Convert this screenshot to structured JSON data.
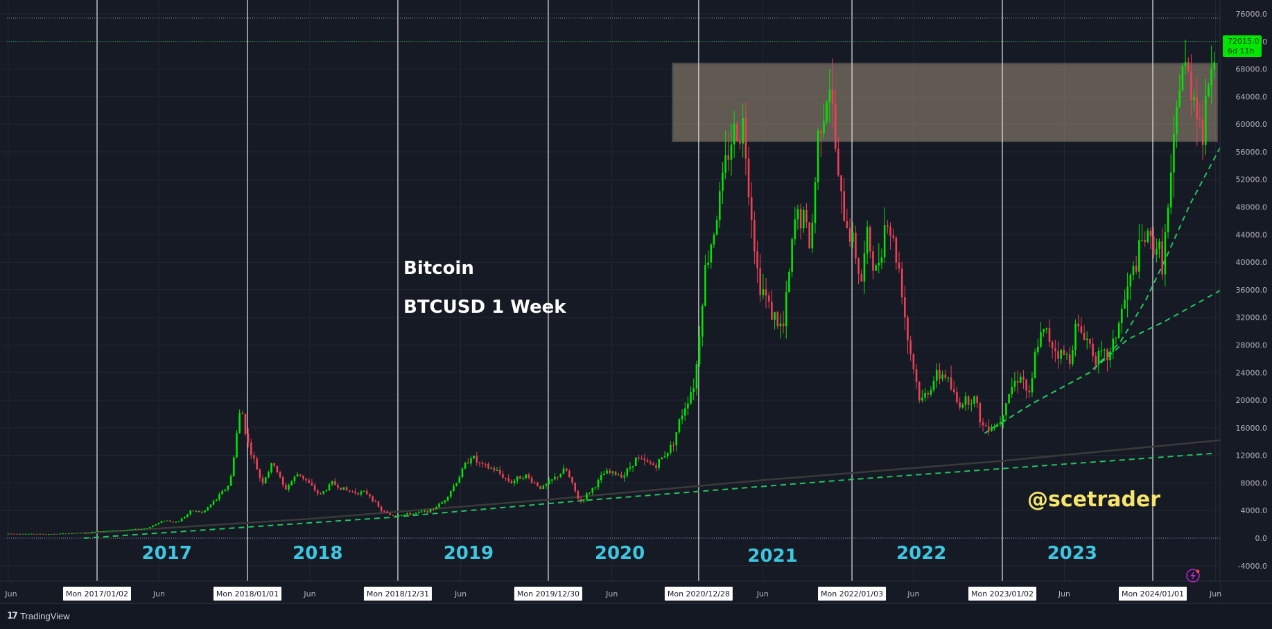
{
  "chart_data": {
    "type": "candlestick",
    "symbol_title": "Bitcoin",
    "symbol_subtitle": "BTCUSD 1 Week",
    "watermark": "@scetrader",
    "price_axis": {
      "ylim": [
        -6000,
        78000
      ],
      "ticks": [
        "76000.0",
        "72000.0",
        "68000.0",
        "64000.0",
        "60000.0",
        "56000.0",
        "52000.0",
        "48000.0",
        "44000.0",
        "40000.0",
        "36000.0",
        "32000.0",
        "28000.0",
        "24000.0",
        "20000.0",
        "16000.0",
        "12000.0",
        "8000.0",
        "4000.0",
        "0.0",
        "-4000.0"
      ]
    },
    "last_price": {
      "value": "72015.0",
      "countdown": "6d 11h",
      "color": "#00e600"
    },
    "time_axis": {
      "labels": [
        {
          "date": "2016-06-01",
          "text": "Jun",
          "boxed": false
        },
        {
          "date": "2017-01-02",
          "text": "Mon 2017/01/02",
          "boxed": true
        },
        {
          "date": "2017-06-01",
          "text": "Jun",
          "boxed": false
        },
        {
          "date": "2018-01-01",
          "text": "Mon 2018/01/01",
          "boxed": true
        },
        {
          "date": "2018-06-01",
          "text": "Jun",
          "boxed": false
        },
        {
          "date": "2018-12-31",
          "text": "Mon 2018/12/31",
          "boxed": true
        },
        {
          "date": "2019-06-01",
          "text": "Jun",
          "boxed": false
        },
        {
          "date": "2019-12-30",
          "text": "Mon 2019/12/30",
          "boxed": true
        },
        {
          "date": "2020-06-01",
          "text": "Jun",
          "boxed": false
        },
        {
          "date": "2020-12-28",
          "text": "Mon 2020/12/28",
          "boxed": true
        },
        {
          "date": "2021-06-01",
          "text": "Jun",
          "boxed": false
        },
        {
          "date": "2022-01-03",
          "text": "Mon 2022/01/03",
          "boxed": true
        },
        {
          "date": "2022-06-01",
          "text": "Jun",
          "boxed": false
        },
        {
          "date": "2023-01-02",
          "text": "Mon 2023/01/02",
          "boxed": true
        },
        {
          "date": "2023-06-01",
          "text": "Jun",
          "boxed": false
        },
        {
          "date": "2024-01-01",
          "text": "Mon 2024/01/01",
          "boxed": true
        },
        {
          "date": "2024-06-01",
          "text": "Jun",
          "boxed": false
        }
      ]
    },
    "year_separators": [
      "2017-01-02",
      "2018-01-01",
      "2018-12-31",
      "2019-12-30",
      "2020-12-28",
      "2022-01-03",
      "2023-01-02",
      "2024-01-01"
    ],
    "year_labels": [
      {
        "text": "2017",
        "date": "2017-06-20",
        "y": -2000
      },
      {
        "text": "2018",
        "date": "2018-06-20",
        "y": -2000
      },
      {
        "text": "2019",
        "date": "2019-06-20",
        "y": -2000
      },
      {
        "text": "2020",
        "date": "2020-06-20",
        "y": -2000
      },
      {
        "text": "2021",
        "date": "2021-06-25",
        "y": -2400
      },
      {
        "text": "2022",
        "date": "2022-06-20",
        "y": -2000
      },
      {
        "text": "2023",
        "date": "2023-06-20",
        "y": -2000
      }
    ],
    "resistance_zone": {
      "date_start": "2020-10-26",
      "date_end": "2024-06-05",
      "price_low": 57500,
      "price_high": 68800
    },
    "horizontal_level": 72015,
    "trendlines": [
      {
        "name": "long-term support",
        "style": "dashed",
        "color": "#22c55e",
        "points": [
          [
            "2016-12-01",
            0
          ],
          [
            "2018-12-10",
            3000
          ],
          [
            "2020-04-01",
            5500
          ],
          [
            "2022-01-01",
            8500
          ],
          [
            "2024-06-01",
            12300
          ]
        ]
      },
      {
        "name": "mid-term support",
        "style": "dashed",
        "color": "#22c55e",
        "points": [
          [
            "2022-11-20",
            15200
          ],
          [
            "2023-03-15",
            19500
          ],
          [
            "2023-08-01",
            24000
          ],
          [
            "2023-11-01",
            28800
          ],
          [
            "2024-02-01",
            31500
          ],
          [
            "2024-06-15",
            36000
          ]
        ]
      },
      {
        "name": "steep support",
        "style": "dashed",
        "color": "#22c55e",
        "points": [
          [
            "2022-11-20",
            15200
          ],
          [
            "2023-03-15",
            19500
          ],
          [
            "2023-08-01",
            24000
          ],
          [
            "2023-10-15",
            28500
          ],
          [
            "2023-12-15",
            34500
          ],
          [
            "2024-02-01",
            40500
          ],
          [
            "2024-04-01",
            48500
          ],
          [
            "2024-06-20",
            57500
          ]
        ]
      },
      {
        "name": "moving average",
        "style": "solid",
        "color": "#3a3a3a",
        "points": [
          [
            "2016-12-01",
            700
          ],
          [
            "2018-06-01",
            2800
          ],
          [
            "2020-01-01",
            5600
          ],
          [
            "2021-06-01",
            8400
          ],
          [
            "2023-01-01",
            11200
          ],
          [
            "2024-06-30",
            14300
          ]
        ]
      }
    ],
    "price_path": [
      [
        "2016-06-01",
        650
      ],
      [
        "2016-09-15",
        600
      ],
      [
        "2016-12-15",
        800
      ],
      [
        "2017-01-02",
        1000
      ],
      [
        "2017-03-15",
        1150
      ],
      [
        "2017-05-01",
        1400
      ],
      [
        "2017-06-15",
        2600
      ],
      [
        "2017-07-15",
        2300
      ],
      [
        "2017-08-20",
        4000
      ],
      [
        "2017-09-15",
        3700
      ],
      [
        "2017-10-20",
        5800
      ],
      [
        "2017-11-20",
        8000
      ],
      [
        "2017-12-10",
        17000
      ],
      [
        "2017-12-17",
        19000
      ],
      [
        "2018-01-01",
        14000
      ],
      [
        "2018-02-05",
        8000
      ],
      [
        "2018-03-05",
        11000
      ],
      [
        "2018-04-01",
        7000
      ],
      [
        "2018-05-05",
        9500
      ],
      [
        "2018-06-25",
        6200
      ],
      [
        "2018-07-25",
        8000
      ],
      [
        "2018-09-01",
        6800
      ],
      [
        "2018-10-20",
        6500
      ],
      [
        "2018-11-20",
        4000
      ],
      [
        "2018-12-15",
        3300
      ],
      [
        "2019-02-01",
        3500
      ],
      [
        "2019-03-20",
        4000
      ],
      [
        "2019-04-20",
        5300
      ],
      [
        "2019-05-20",
        8000
      ],
      [
        "2019-06-25",
        12000
      ],
      [
        "2019-07-20",
        10500
      ],
      [
        "2019-08-20",
        10000
      ],
      [
        "2019-10-01",
        8100
      ],
      [
        "2019-11-01",
        9200
      ],
      [
        "2019-12-15",
        7200
      ],
      [
        "2020-02-10",
        10000
      ],
      [
        "2020-03-15",
        5200
      ],
      [
        "2020-04-20",
        7500
      ],
      [
        "2020-05-15",
        9500
      ],
      [
        "2020-07-01",
        9200
      ],
      [
        "2020-07-28",
        11500
      ],
      [
        "2020-09-15",
        10500
      ],
      [
        "2020-10-25",
        13500
      ],
      [
        "2020-11-20",
        18500
      ],
      [
        "2020-12-20",
        23000
      ],
      [
        "2021-01-10",
        38000
      ],
      [
        "2021-02-20",
        50000
      ],
      [
        "2021-03-15",
        58000
      ],
      [
        "2021-04-15",
        60000
      ],
      [
        "2021-05-20",
        38000
      ],
      [
        "2021-06-20",
        33000
      ],
      [
        "2021-07-20",
        30000
      ],
      [
        "2021-08-20",
        47000
      ],
      [
        "2021-09-10",
        46000
      ],
      [
        "2021-09-25",
        42000
      ],
      [
        "2021-10-15",
        60000
      ],
      [
        "2021-11-10",
        66000
      ],
      [
        "2021-12-05",
        49000
      ],
      [
        "2022-01-10",
        42000
      ],
      [
        "2022-01-25",
        37000
      ],
      [
        "2022-02-10",
        44000
      ],
      [
        "2022-03-01",
        38000
      ],
      [
        "2022-03-28",
        47000
      ],
      [
        "2022-05-01",
        38000
      ],
      [
        "2022-05-15",
        30000
      ],
      [
        "2022-06-18",
        19500
      ],
      [
        "2022-07-20",
        23000
      ],
      [
        "2022-08-15",
        24000
      ],
      [
        "2022-09-15",
        19500
      ],
      [
        "2022-10-25",
        20500
      ],
      [
        "2022-11-15",
        16200
      ],
      [
        "2022-12-25",
        16600
      ],
      [
        "2023-01-15",
        21000
      ],
      [
        "2023-02-15",
        24000
      ],
      [
        "2023-03-10",
        20000
      ],
      [
        "2023-03-25",
        28000
      ],
      [
        "2023-04-15",
        30000
      ],
      [
        "2023-05-15",
        27000
      ],
      [
        "2023-06-15",
        26000
      ],
      [
        "2023-06-25",
        30500
      ],
      [
        "2023-07-20",
        29500
      ],
      [
        "2023-08-20",
        26000
      ],
      [
        "2023-09-20",
        26500
      ],
      [
        "2023-10-25",
        34500
      ],
      [
        "2023-12-10",
        43500
      ],
      [
        "2024-01-10",
        42500
      ],
      [
        "2024-01-25",
        40000
      ],
      [
        "2024-02-15",
        52000
      ],
      [
        "2024-03-10",
        69000
      ],
      [
        "2024-04-15",
        64000
      ],
      [
        "2024-05-01",
        58000
      ],
      [
        "2024-05-20",
        69500
      ],
      [
        "2024-06-02",
        72015
      ]
    ]
  },
  "footer": {
    "brand": "TradingView"
  }
}
